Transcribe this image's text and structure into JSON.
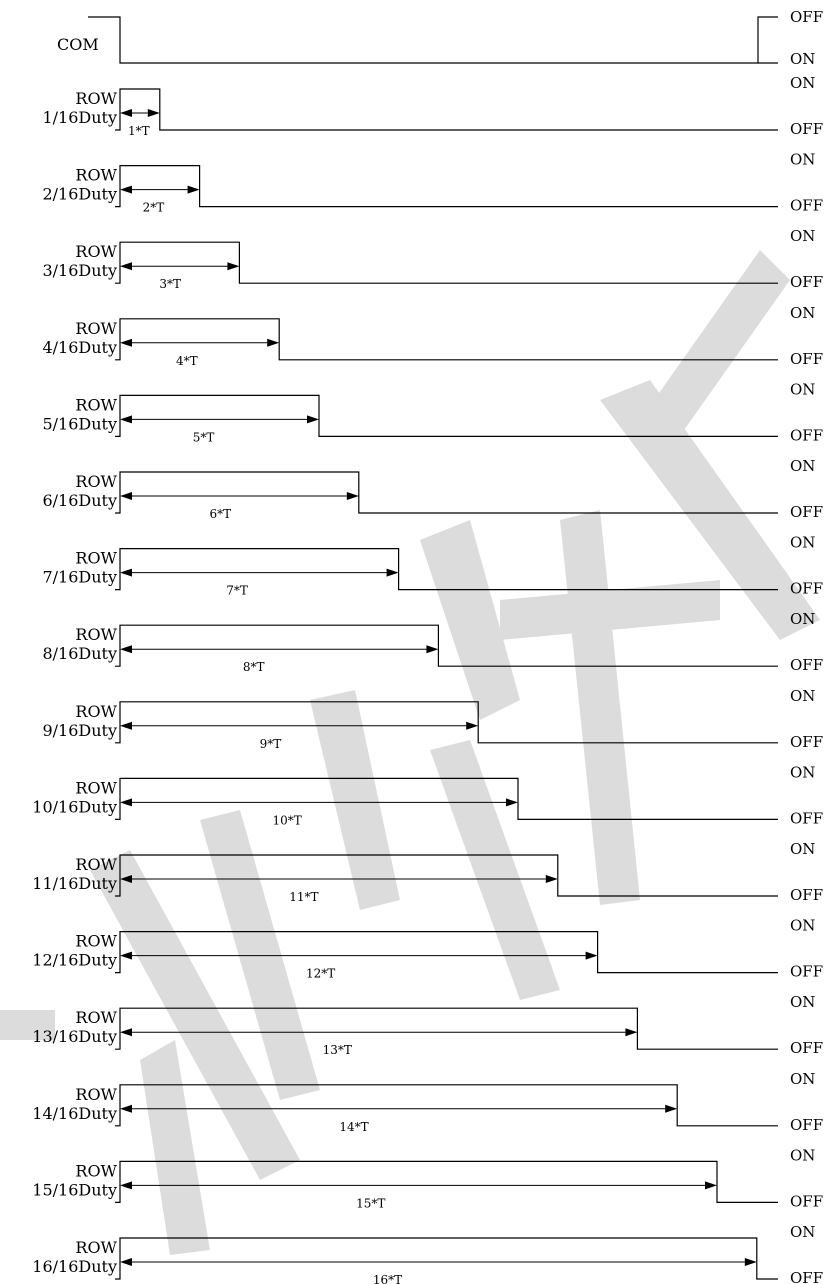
{
  "com": {
    "label": "COM",
    "high_label": "OFF",
    "low_label": "ON"
  },
  "rows": [
    {
      "line1": "ROW",
      "line2": "1/16Duty",
      "duration": "1*T",
      "on_label": "ON",
      "off_label": "OFF",
      "on_units": 1
    },
    {
      "line1": "ROW",
      "line2": "2/16Duty",
      "duration": "2*T",
      "on_label": "ON",
      "off_label": "OFF",
      "on_units": 2
    },
    {
      "line1": "ROW",
      "line2": "3/16Duty",
      "duration": "3*T",
      "on_label": "ON",
      "off_label": "OFF",
      "on_units": 3
    },
    {
      "line1": "ROW",
      "line2": "4/16Duty",
      "duration": "4*T",
      "on_label": "ON",
      "off_label": "OFF",
      "on_units": 4
    },
    {
      "line1": "ROW",
      "line2": "5/16Duty",
      "duration": "5*T",
      "on_label": "ON",
      "off_label": "OFF",
      "on_units": 5
    },
    {
      "line1": "ROW",
      "line2": "6/16Duty",
      "duration": "6*T",
      "on_label": "ON",
      "off_label": "OFF",
      "on_units": 6
    },
    {
      "line1": "ROW",
      "line2": "7/16Duty",
      "duration": "7*T",
      "on_label": "ON",
      "off_label": "OFF",
      "on_units": 7
    },
    {
      "line1": "ROW",
      "line2": "8/16Duty",
      "duration": "8*T",
      "on_label": "ON",
      "off_label": "OFF",
      "on_units": 8
    },
    {
      "line1": "ROW",
      "line2": "9/16Duty",
      "duration": "9*T",
      "on_label": "ON",
      "off_label": "OFF",
      "on_units": 9
    },
    {
      "line1": "ROW",
      "line2": "10/16Duty",
      "duration": "10*T",
      "on_label": "ON",
      "off_label": "OFF",
      "on_units": 10
    },
    {
      "line1": "ROW",
      "line2": "11/16Duty",
      "duration": "11*T",
      "on_label": "ON",
      "off_label": "OFF",
      "on_units": 11
    },
    {
      "line1": "ROW",
      "line2": "12/16Duty",
      "duration": "12*T",
      "on_label": "ON",
      "off_label": "OFF",
      "on_units": 12
    },
    {
      "line1": "ROW",
      "line2": "13/16Duty",
      "duration": "13*T",
      "on_label": "ON",
      "off_label": "OFF",
      "on_units": 13
    },
    {
      "line1": "ROW",
      "line2": "14/16Duty",
      "duration": "14*T",
      "on_label": "ON",
      "off_label": "OFF",
      "on_units": 14
    },
    {
      "line1": "ROW",
      "line2": "15/16Duty",
      "duration": "15*T",
      "on_label": "ON",
      "off_label": "OFF",
      "on_units": 15
    },
    {
      "line1": "ROW",
      "line2": "16/16Duty",
      "duration": "16*T",
      "on_label": "ON",
      "off_label": "OFF",
      "on_units": 16
    }
  ],
  "total_units": 16,
  "colors": {
    "line": "#000000",
    "watermark": "#dcdcdc"
  }
}
